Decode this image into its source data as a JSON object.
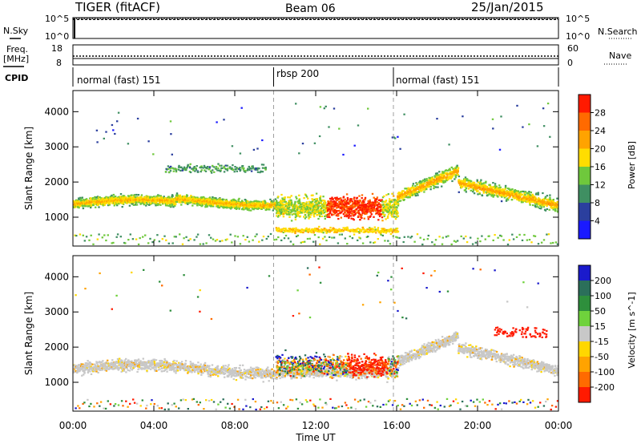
{
  "header": {
    "title": "TIGER (fitACF)",
    "beam": "Beam 06",
    "date": "25/Jan/2015"
  },
  "nsky_panel": {
    "left_label": "N.Sky",
    "right_label": "N.Search",
    "ticks": [
      "10^5",
      "10^0"
    ]
  },
  "freq_panel": {
    "left_label_line1": "Freq.",
    "left_label_line2": "[MHz]",
    "right_label": "Nave",
    "left_ticks": [
      "18",
      "8"
    ],
    "right_ticks": [
      "60",
      "0"
    ]
  },
  "cpid_panel": {
    "label": "CPID",
    "segments": [
      {
        "start_hour": 0,
        "label": "normal (fast) 151"
      },
      {
        "start_hour": 10,
        "label": "rbsp 200"
      },
      {
        "start_hour": 16,
        "label": "normal (fast) 151"
      }
    ]
  },
  "x_axis": {
    "label": "Time UT",
    "ticks": [
      "00:00",
      "04:00",
      "08:00",
      "12:00",
      "16:00",
      "20:00",
      "00:00"
    ]
  },
  "chart_data": [
    {
      "type": "heatmap",
      "parameter": "Power",
      "ylabel": "Slant Range [km]",
      "xlabel": "Time UT",
      "xlim": [
        0,
        24
      ],
      "ylim": [
        180,
        4600
      ],
      "yticks": [
        1000,
        2000,
        3000,
        4000
      ],
      "colorbar": {
        "label": "Power [dB]",
        "ticks": [
          "28",
          "24",
          "20",
          "16",
          "12",
          "8",
          "4"
        ],
        "colors": [
          "#ff1a00",
          "#ff6a00",
          "#ffa300",
          "#ffdd00",
          "#6fc83c",
          "#3f8f62",
          "#2b3f9e",
          "#1a1aff"
        ]
      },
      "features": [
        {
          "time_range": [
            0,
            10
          ],
          "range_km": [
            1150,
            1700
          ],
          "level": "12-20 dB"
        },
        {
          "time_range": [
            10,
            16
          ],
          "range_km": [
            500,
            2200
          ],
          "level": "up to 28 dB"
        },
        {
          "time_range": [
            16,
            24
          ],
          "range_km": [
            1250,
            2700
          ],
          "level": "8-24 dB"
        }
      ]
    },
    {
      "type": "heatmap",
      "parameter": "Velocity",
      "ylabel": "Slant Range [km]",
      "xlabel": "Time UT",
      "xlim": [
        0,
        24
      ],
      "ylim": [
        180,
        4600
      ],
      "yticks": [
        1000,
        2000,
        3000,
        4000
      ],
      "colorbar": {
        "label": "Velocity [m s^-1]",
        "ticks": [
          "200",
          "100",
          "50",
          "15",
          "-15",
          "-50",
          "-100",
          "-200"
        ],
        "colors": [
          "#1a1acc",
          "#2b6f5a",
          "#2e8f3c",
          "#6fd23c",
          "#c8c8c8",
          "#ffd700",
          "#ffa300",
          "#ff6a00",
          "#ff1a00"
        ]
      },
      "features": [
        {
          "time_range": [
            0,
            10
          ],
          "range_km": [
            1100,
            1700
          ],
          "velocity": "ground scatter (-15 to 15)"
        },
        {
          "time_range": [
            10,
            16
          ],
          "range_km": [
            1200,
            2300
          ],
          "velocity": "mixed, -200 to 200"
        },
        {
          "time_range": [
            16,
            24
          ],
          "range_km": [
            1200,
            2600
          ],
          "velocity": "ground scatter with negative patches"
        }
      ]
    }
  ]
}
